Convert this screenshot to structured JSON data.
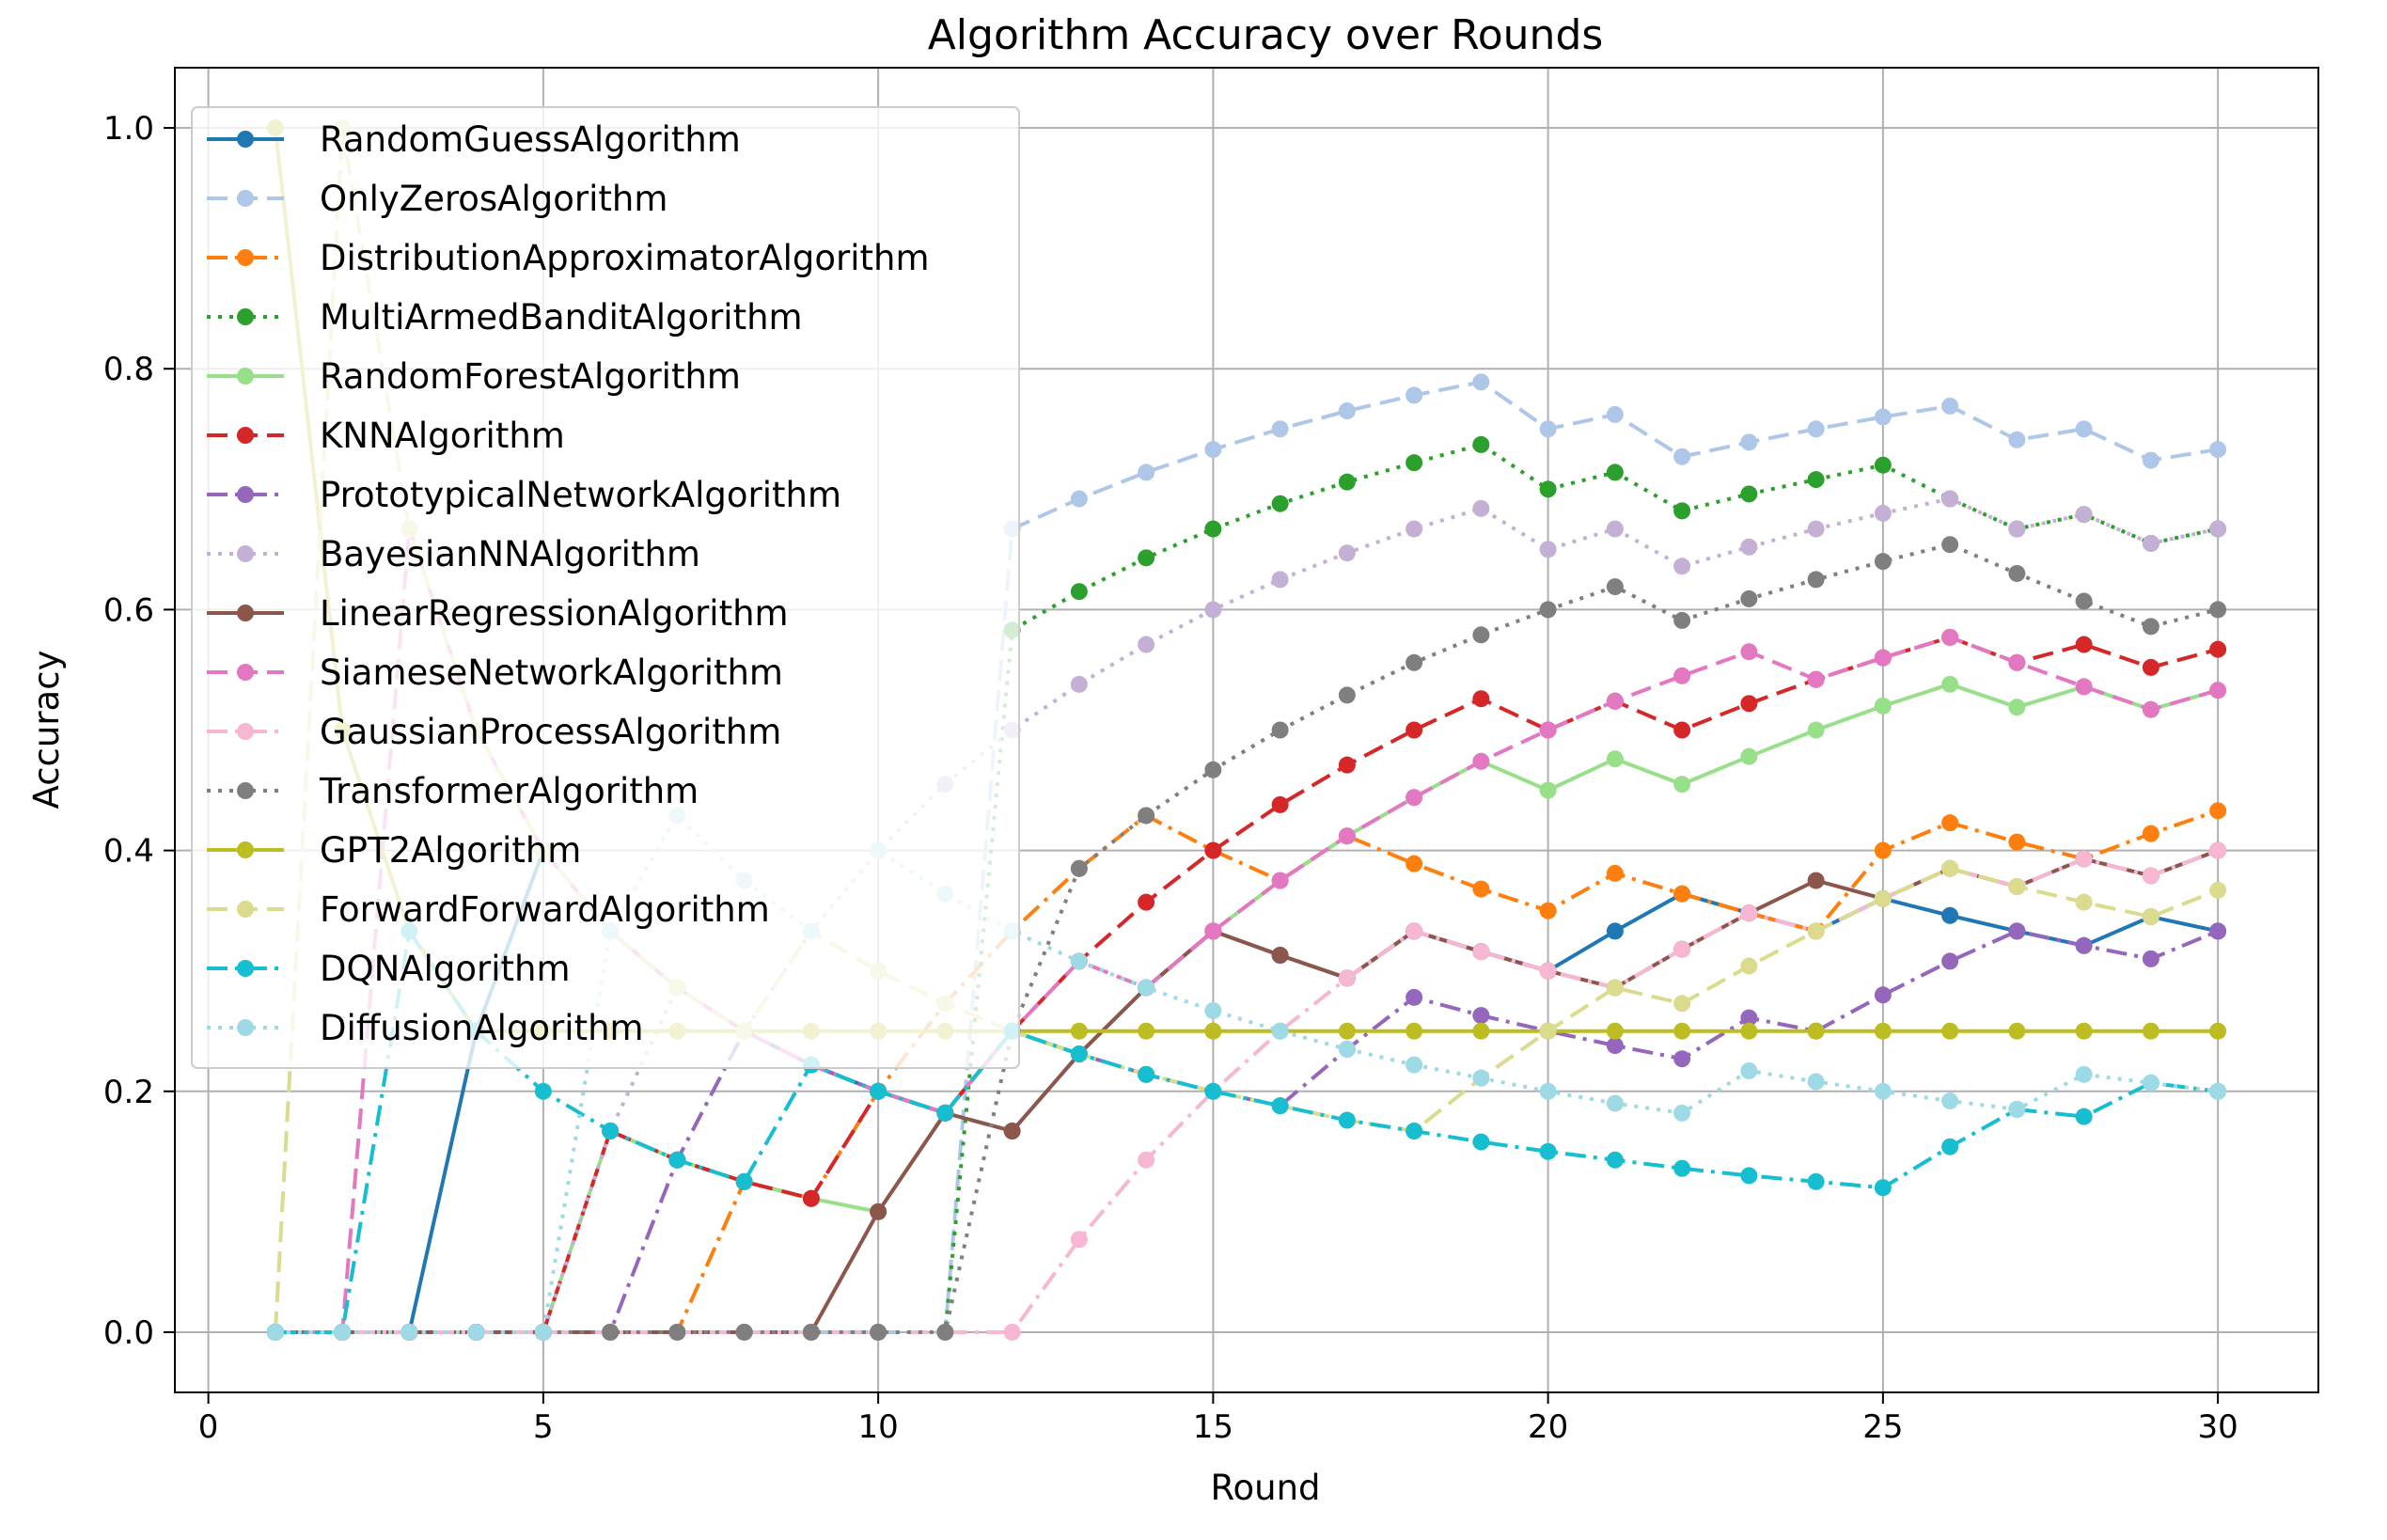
{
  "chart_data": {
    "type": "line",
    "title": "Algorithm Accuracy over Rounds",
    "xlabel": "Round",
    "ylabel": "Accuracy",
    "xlim": [
      -0.5,
      31.5
    ],
    "ylim": [
      -0.05,
      1.05
    ],
    "xticks": [
      0,
      5,
      10,
      15,
      20,
      25,
      30
    ],
    "yticks": [
      0.0,
      0.2,
      0.4,
      0.6,
      0.8,
      1.0
    ],
    "grid": true,
    "legend_position": "upper-left",
    "x": [
      1,
      2,
      3,
      4,
      5,
      6,
      7,
      8,
      9,
      10,
      11,
      12,
      13,
      14,
      15,
      16,
      17,
      18,
      19,
      20,
      21,
      22,
      23,
      24,
      25,
      26,
      27,
      28,
      29,
      30
    ],
    "series": [
      {
        "name": "RandomGuessAlgorithm",
        "color": "#1f77b4",
        "dash": "solid",
        "values": [
          0,
          0,
          0,
          0.25,
          0.4,
          0.333,
          0.286,
          0.25,
          0.222,
          0.2,
          0.182,
          0.25,
          0.231,
          0.286,
          0.333,
          0.313,
          0.294,
          0.333,
          0.316,
          0.3,
          0.333,
          0.364,
          0.348,
          0.333,
          0.36,
          0.346,
          0.333,
          0.321,
          0.345,
          0.333
        ]
      },
      {
        "name": "OnlyZerosAlgorithm",
        "color": "#aec7e8",
        "dash": "dashed",
        "values": [
          0,
          0,
          0,
          0,
          0,
          0,
          0,
          0,
          0,
          0,
          0,
          0.667,
          0.692,
          0.714,
          0.733,
          0.75,
          0.765,
          0.778,
          0.789,
          0.75,
          0.762,
          0.727,
          0.739,
          0.75,
          0.76,
          0.769,
          0.741,
          0.75,
          0.724,
          0.733
        ]
      },
      {
        "name": "DistributionApproximatorAlgorithm",
        "color": "#ff7f0e",
        "dash": "dashdot",
        "values": [
          0,
          0,
          0,
          0,
          0,
          0,
          0,
          0.125,
          0.111,
          0.2,
          0.273,
          0.333,
          0.385,
          0.429,
          0.4,
          0.375,
          0.412,
          0.389,
          0.368,
          0.35,
          0.381,
          0.364,
          0.348,
          0.333,
          0.4,
          0.423,
          0.407,
          0.393,
          0.414,
          0.433
        ]
      },
      {
        "name": "MultiArmedBanditAlgorithm",
        "color": "#2ca02c",
        "dash": "dotted",
        "values": [
          0,
          0,
          0,
          0,
          0,
          0,
          0,
          0,
          0,
          0,
          0,
          0.583,
          0.615,
          0.643,
          0.667,
          0.688,
          0.706,
          0.722,
          0.737,
          0.7,
          0.714,
          0.682,
          0.696,
          0.708,
          0.72,
          0.692,
          0.667,
          0.679,
          0.655,
          0.667
        ]
      },
      {
        "name": "RandomForestAlgorithm",
        "color": "#98df8a",
        "dash": "solid",
        "values": [
          0,
          0,
          0,
          0,
          0,
          0.167,
          0.143,
          0.125,
          0.111,
          0.1,
          0.182,
          0.25,
          0.231,
          0.286,
          0.333,
          0.375,
          0.412,
          0.444,
          0.474,
          0.45,
          0.476,
          0.455,
          0.478,
          0.5,
          0.52,
          0.538,
          0.519,
          0.536,
          0.517,
          0.533
        ]
      },
      {
        "name": "KNNAlgorithm",
        "color": "#d62728",
        "dash": "dashed",
        "values": [
          0,
          0,
          0,
          0,
          0,
          0.167,
          0.143,
          0.125,
          0.111,
          0.2,
          0.182,
          0.25,
          0.308,
          0.357,
          0.4,
          0.438,
          0.471,
          0.5,
          0.526,
          0.5,
          0.524,
          0.5,
          0.522,
          0.542,
          0.56,
          0.577,
          0.556,
          0.571,
          0.552,
          0.567
        ]
      },
      {
        "name": "PrototypicalNetworkAlgorithm",
        "color": "#9467bd",
        "dash": "dashdot",
        "values": [
          0,
          0,
          0,
          0,
          0,
          0,
          0.143,
          0.25,
          0.222,
          0.2,
          0.182,
          0.167,
          0.231,
          0.214,
          0.2,
          0.188,
          0.235,
          0.278,
          0.263,
          0.25,
          0.238,
          0.227,
          0.261,
          0.25,
          0.28,
          0.308,
          0.333,
          0.321,
          0.31,
          0.333
        ]
      },
      {
        "name": "BayesianNNAlgorithm",
        "color": "#c5b0d5",
        "dash": "dotted",
        "values": [
          0,
          0,
          0,
          0,
          0,
          0.167,
          0.286,
          0.25,
          0.333,
          0.4,
          0.455,
          0.5,
          0.538,
          0.571,
          0.6,
          0.625,
          0.647,
          0.667,
          0.684,
          0.65,
          0.667,
          0.636,
          0.652,
          0.667,
          0.68,
          0.692,
          0.667,
          0.679,
          0.655,
          0.667
        ]
      },
      {
        "name": "LinearRegressionAlgorithm",
        "color": "#8c564b",
        "dash": "solid",
        "values": [
          0,
          0,
          0,
          0,
          0,
          0,
          0,
          0,
          0,
          0.1,
          0.182,
          0.167,
          0.231,
          0.286,
          0.333,
          0.313,
          0.294,
          0.333,
          0.316,
          0.3,
          0.286,
          0.318,
          0.348,
          0.375,
          0.36,
          0.385,
          0.37,
          0.393,
          0.379,
          0.4
        ]
      },
      {
        "name": "SiameseNetworkAlgorithm",
        "color": "#e377c2",
        "dash": "dashed",
        "values": [
          0,
          0,
          0.667,
          0.5,
          0.4,
          0.333,
          0.286,
          0.25,
          0.222,
          0.2,
          0.182,
          0.25,
          0.308,
          0.286,
          0.333,
          0.375,
          0.412,
          0.444,
          0.474,
          0.5,
          0.524,
          0.545,
          0.565,
          0.542,
          0.56,
          0.577,
          0.556,
          0.536,
          0.517,
          0.533
        ]
      },
      {
        "name": "GaussianProcessAlgorithm",
        "color": "#f7b6d2",
        "dash": "dashdot",
        "values": [
          0,
          0,
          0,
          0,
          0,
          0,
          0,
          0,
          0,
          0,
          0,
          0,
          0.077,
          0.143,
          0.2,
          0.25,
          0.294,
          0.333,
          0.316,
          0.3,
          0.286,
          0.318,
          0.348,
          0.333,
          0.36,
          0.385,
          0.37,
          0.393,
          0.379,
          0.4
        ]
      },
      {
        "name": "TransformerAlgorithm",
        "color": "#7f7f7f",
        "dash": "dotted",
        "values": [
          0,
          0,
          0,
          0,
          0,
          0,
          0,
          0,
          0,
          0,
          0,
          0.25,
          0.385,
          0.429,
          0.467,
          0.5,
          0.529,
          0.556,
          0.579,
          0.6,
          0.619,
          0.591,
          0.609,
          0.625,
          0.64,
          0.654,
          0.63,
          0.607,
          0.586,
          0.6
        ]
      },
      {
        "name": "GPT2Algorithm",
        "color": "#bcbd22",
        "dash": "solid",
        "values": [
          1.0,
          0.5,
          0.333,
          0.25,
          0.25,
          0.25,
          0.25,
          0.25,
          0.25,
          0.25,
          0.25,
          0.25,
          0.25,
          0.25,
          0.25,
          0.25,
          0.25,
          0.25,
          0.25,
          0.25,
          0.25,
          0.25,
          0.25,
          0.25,
          0.25,
          0.25,
          0.25,
          0.25,
          0.25,
          0.25
        ]
      },
      {
        "name": "ForwardForwardAlgorithm",
        "color": "#dbdb8d",
        "dash": "dashed",
        "values": [
          0,
          1.0,
          0.667,
          0.5,
          0.4,
          0.333,
          0.286,
          0.25,
          0.333,
          0.3,
          0.273,
          0.25,
          0.231,
          0.214,
          0.2,
          0.188,
          0.176,
          0.167,
          0.211,
          0.25,
          0.286,
          0.273,
          0.304,
          0.333,
          0.36,
          0.385,
          0.37,
          0.357,
          0.345,
          0.367
        ]
      },
      {
        "name": "DQNAlgorithm",
        "color": "#17becf",
        "dash": "dashdot",
        "values": [
          0,
          0,
          0.333,
          0.25,
          0.2,
          0.167,
          0.143,
          0.125,
          0.222,
          0.2,
          0.182,
          0.25,
          0.231,
          0.214,
          0.2,
          0.188,
          0.176,
          0.167,
          0.158,
          0.15,
          0.143,
          0.136,
          0.13,
          0.125,
          0.12,
          0.154,
          0.185,
          0.179,
          0.207,
          0.2
        ]
      },
      {
        "name": "DiffusionAlgorithm",
        "color": "#9edae5",
        "dash": "dotted",
        "values": [
          0,
          0,
          0,
          0,
          0,
          0.333,
          0.429,
          0.375,
          0.333,
          0.4,
          0.364,
          0.333,
          0.308,
          0.286,
          0.267,
          0.25,
          0.235,
          0.222,
          0.211,
          0.2,
          0.19,
          0.182,
          0.217,
          0.208,
          0.2,
          0.192,
          0.185,
          0.214,
          0.207,
          0.2
        ]
      }
    ]
  }
}
